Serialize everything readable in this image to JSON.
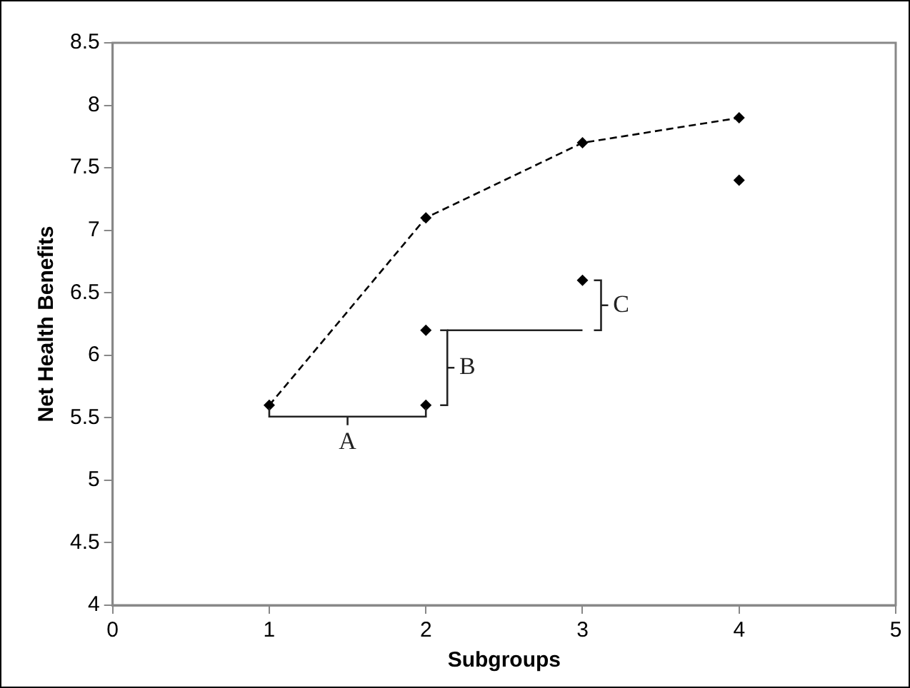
{
  "chart_data": {
    "type": "scatter",
    "xlabel": "Subgroups",
    "ylabel": "Net Health Benefits",
    "series": [
      {
        "type": "line",
        "color": "#000000",
        "line_style": "dashed",
        "x": [
          1,
          2,
          3,
          4
        ],
        "values": [
          5.6,
          7.1,
          7.7,
          7.9
        ]
      },
      {
        "type": "scatter",
        "color": "#000000",
        "x": [
          2,
          2,
          3,
          4
        ],
        "values": [
          5.6,
          6.2,
          6.6,
          7.4
        ]
      }
    ],
    "marker": "diamond",
    "grid": false,
    "legend": false,
    "xlim": [
      0,
      5
    ],
    "xticks": [
      0,
      1,
      2,
      3,
      4,
      5
    ],
    "ylim": [
      4,
      8.5
    ],
    "yticks": [
      4,
      4.5,
      5,
      5.5,
      6,
      6.5,
      7,
      7.5,
      8,
      8.5
    ],
    "annotations": [
      "A",
      "B",
      "C"
    ]
  }
}
